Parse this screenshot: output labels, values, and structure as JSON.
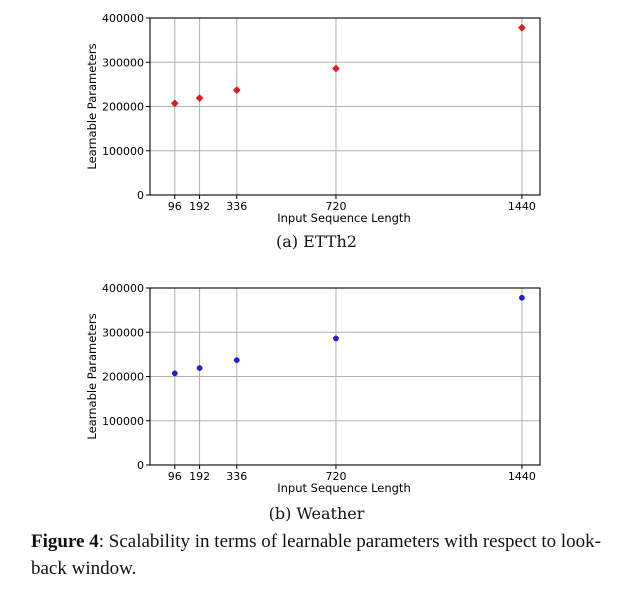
{
  "chart_data": [
    {
      "type": "scatter",
      "subcaption": "(a) ETTh2",
      "xlabel": "Input Sequence Length",
      "ylabel": "Learnable Parameters",
      "xticks": [
        96,
        192,
        336,
        720,
        1440
      ],
      "yticks": [
        0,
        100000,
        200000,
        300000,
        400000
      ],
      "xlim": [
        0,
        1510
      ],
      "ylim": [
        0,
        400000
      ],
      "grid": true,
      "marker": "diamond",
      "color": "#e31a1c",
      "x": [
        96,
        192,
        336,
        720,
        1440
      ],
      "y": [
        207000,
        219000,
        237000,
        286000,
        378000
      ]
    },
    {
      "type": "scatter",
      "subcaption": "(b) Weather",
      "xlabel": "Input Sequence Length",
      "ylabel": "Learnable Parameters",
      "xticks": [
        96,
        192,
        336,
        720,
        1440
      ],
      "yticks": [
        0,
        100000,
        200000,
        300000,
        400000
      ],
      "xlim": [
        0,
        1510
      ],
      "ylim": [
        0,
        400000
      ],
      "grid": true,
      "marker": "circle",
      "color": "#1f1fe0",
      "x": [
        96,
        192,
        336,
        720,
        1440
      ],
      "y": [
        207000,
        219000,
        237000,
        286000,
        378000
      ]
    }
  ],
  "caption": {
    "label": "Figure 4",
    "text": ": Scalability in terms of learnable parameters with respect to look-back window."
  }
}
